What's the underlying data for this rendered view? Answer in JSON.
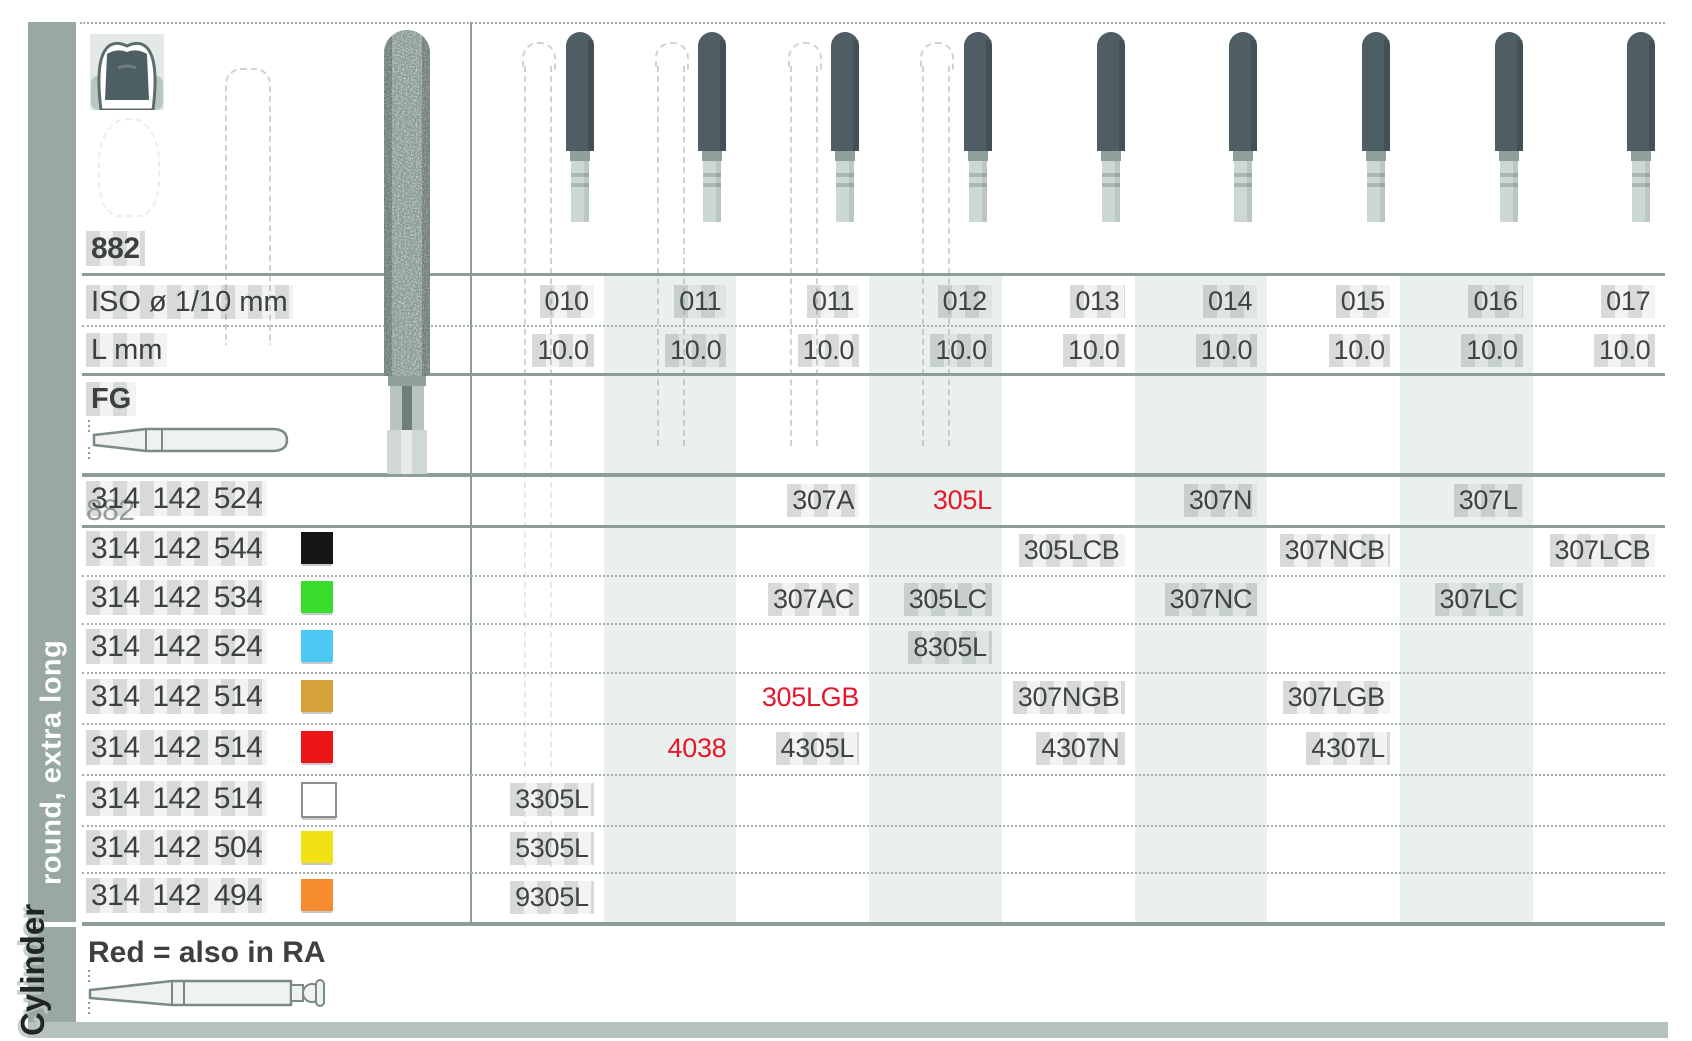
{
  "sidebar": {
    "category_label": "Cylinder",
    "shape_label": "round, extra long"
  },
  "header": {
    "figure_number": "882",
    "iso_label": "ISO ø 1/10 mm",
    "length_label": "L mm",
    "mount_label": "FG",
    "iso_values": [
      "010",
      "011",
      "011",
      "012",
      "013",
      "014",
      "015",
      "016",
      "017"
    ],
    "length_values": [
      "10.0",
      "10.0",
      "10.0",
      "10.0",
      "10.0",
      "10.0",
      "10.0",
      "10.0",
      "10.0"
    ]
  },
  "table": {
    "rows": [
      {
        "code": "314 142 524",
        "ring": null,
        "ghost": "882",
        "cells": [
          {
            "col": 3,
            "value": "307A"
          },
          {
            "col": 4,
            "value": "305L",
            "red": true
          },
          {
            "col": 6,
            "value": "307N"
          },
          {
            "col": 8,
            "value": "307L"
          }
        ]
      },
      {
        "code": "314 142 544",
        "ring": "black",
        "cells": [
          {
            "col": 5,
            "value": "305LCB"
          },
          {
            "col": 7,
            "value": "307NCB"
          },
          {
            "col": 9,
            "value": "307LCB"
          }
        ]
      },
      {
        "code": "314 142 534",
        "ring": "green",
        "cells": [
          {
            "col": 3,
            "value": "307AC"
          },
          {
            "col": 4,
            "value": "305LC"
          },
          {
            "col": 6,
            "value": "307NC"
          },
          {
            "col": 8,
            "value": "307LC"
          }
        ]
      },
      {
        "code": "314 142 524",
        "ring": "blue",
        "cells": [
          {
            "col": 4,
            "value": "8305L"
          }
        ]
      },
      {
        "code": "314 142 514",
        "ring": "gold",
        "cells": [
          {
            "col": 3,
            "value": "305LGB",
            "red": true
          },
          {
            "col": 5,
            "value": "307NGB"
          },
          {
            "col": 7,
            "value": "307LGB"
          }
        ]
      },
      {
        "code": "314 142 514",
        "ring": "red",
        "cells": [
          {
            "col": 2,
            "value": "4038",
            "red": true
          },
          {
            "col": 3,
            "value": "4305L"
          },
          {
            "col": 5,
            "value": "4307N"
          },
          {
            "col": 7,
            "value": "4307L"
          }
        ]
      },
      {
        "code": "314 142 514",
        "ring": "white",
        "cells": [
          {
            "col": 1,
            "value": "3305L"
          }
        ]
      },
      {
        "code": "314 142 504",
        "ring": "yellow",
        "cells": [
          {
            "col": 1,
            "value": "5305L"
          }
        ]
      },
      {
        "code": "314 142 494",
        "ring": "orange",
        "cells": [
          {
            "col": 1,
            "value": "9305L"
          }
        ]
      }
    ]
  },
  "footer": {
    "note": "Red = also in RA"
  },
  "colors": {
    "accent_red": "#e5182b",
    "line": "#8d9e99",
    "stripe": "#eaf0ed",
    "sidebar_band": "#9aa8a2",
    "bottom_strip": "#b7c1bc",
    "ring_black": "#161616",
    "ring_green": "#39dd2b",
    "ring_blue": "#4cc8f5",
    "ring_gold": "#d7a23c",
    "ring_red": "#ed1515",
    "ring_white": "#ffffff",
    "ring_yellow": "#f2e013",
    "ring_orange": "#f68a2e"
  }
}
